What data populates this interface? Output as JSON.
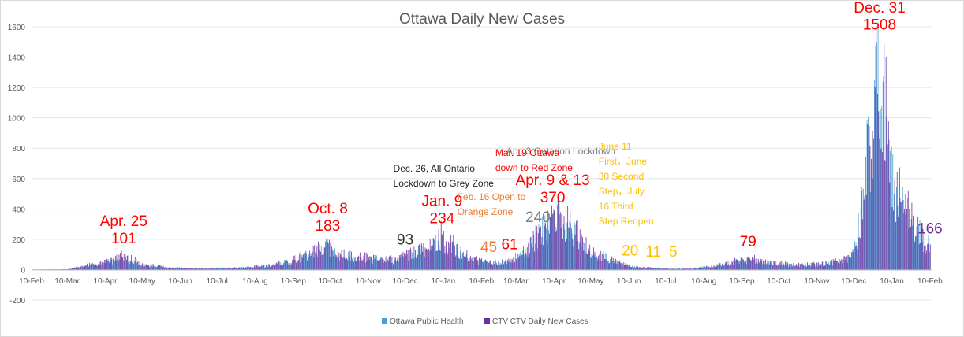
{
  "chart_data": {
    "type": "bar",
    "title": "Ottawa Daily New Cases",
    "xlabel": "",
    "ylabel": "",
    "ylim": [
      -200,
      1600
    ],
    "yticks": [
      -200,
      0,
      200,
      400,
      600,
      800,
      1000,
      1200,
      1400,
      1600
    ],
    "grid": "horizontal",
    "legend_position": "bottom",
    "x_start": "2020-02-10",
    "x_end": "2022-02-12",
    "xticks": [
      {
        "date": "2020-02-10",
        "label": "10-Feb"
      },
      {
        "date": "2020-03-10",
        "label": "10-Mar"
      },
      {
        "date": "2020-04-10",
        "label": "10-Apr"
      },
      {
        "date": "2020-05-10",
        "label": "10-May"
      },
      {
        "date": "2020-06-10",
        "label": "10-Jun"
      },
      {
        "date": "2020-07-10",
        "label": "10-Jul"
      },
      {
        "date": "2020-08-10",
        "label": "10-Aug"
      },
      {
        "date": "2020-09-10",
        "label": "10-Sep"
      },
      {
        "date": "2020-10-10",
        "label": "10-Oct"
      },
      {
        "date": "2020-11-10",
        "label": "10-Nov"
      },
      {
        "date": "2020-12-10",
        "label": "10-Dec"
      },
      {
        "date": "2021-01-10",
        "label": "10-Jan"
      },
      {
        "date": "2021-02-10",
        "label": "10-Feb"
      },
      {
        "date": "2021-03-10",
        "label": "10-Mar"
      },
      {
        "date": "2021-04-10",
        "label": "10-Apr"
      },
      {
        "date": "2021-05-10",
        "label": "10-May"
      },
      {
        "date": "2021-06-10",
        "label": "10-Jun"
      },
      {
        "date": "2021-07-10",
        "label": "10-Jul"
      },
      {
        "date": "2021-08-10",
        "label": "10-Aug"
      },
      {
        "date": "2021-09-10",
        "label": "10-Sep"
      },
      {
        "date": "2021-10-10",
        "label": "10-Oct"
      },
      {
        "date": "2021-11-10",
        "label": "10-Nov"
      },
      {
        "date": "2021-12-10",
        "label": "10-Dec"
      },
      {
        "date": "2022-01-10",
        "label": "10-Jan"
      },
      {
        "date": "2022-02-10",
        "label": "10-Feb"
      }
    ],
    "series": [
      {
        "name": "Ottawa Public Health",
        "color": "#4a9fd3",
        "points": [
          [
            "2020-02-10",
            0
          ],
          [
            "2020-03-10",
            2
          ],
          [
            "2020-03-25",
            25
          ],
          [
            "2020-04-10",
            45
          ],
          [
            "2020-04-25",
            75
          ],
          [
            "2020-05-10",
            30
          ],
          [
            "2020-06-01",
            12
          ],
          [
            "2020-07-01",
            8
          ],
          [
            "2020-08-01",
            12
          ],
          [
            "2020-08-25",
            30
          ],
          [
            "2020-09-10",
            60
          ],
          [
            "2020-09-25",
            95
          ],
          [
            "2020-10-08",
            150
          ],
          [
            "2020-10-20",
            90
          ],
          [
            "2020-11-10",
            70
          ],
          [
            "2020-12-01",
            60
          ],
          [
            "2020-12-10",
            85
          ],
          [
            "2020-12-25",
            130
          ],
          [
            "2021-01-09",
            180
          ],
          [
            "2021-01-25",
            100
          ],
          [
            "2021-02-10",
            50
          ],
          [
            "2021-02-20",
            45
          ],
          [
            "2021-03-05",
            60
          ],
          [
            "2021-03-19",
            120
          ],
          [
            "2021-03-28",
            220
          ],
          [
            "2021-04-09",
            330
          ],
          [
            "2021-04-15",
            340
          ],
          [
            "2021-04-25",
            250
          ],
          [
            "2021-05-10",
            120
          ],
          [
            "2021-05-25",
            70
          ],
          [
            "2021-06-10",
            25
          ],
          [
            "2021-06-30",
            10
          ],
          [
            "2021-07-16",
            6
          ],
          [
            "2021-08-01",
            8
          ],
          [
            "2021-08-20",
            25
          ],
          [
            "2021-09-05",
            55
          ],
          [
            "2021-09-15",
            65
          ],
          [
            "2021-10-01",
            45
          ],
          [
            "2021-10-20",
            30
          ],
          [
            "2021-11-10",
            35
          ],
          [
            "2021-11-25",
            50
          ],
          [
            "2021-12-05",
            70
          ],
          [
            "2021-12-12",
            150
          ],
          [
            "2021-12-17",
            450
          ],
          [
            "2021-12-22",
            820
          ],
          [
            "2021-12-27",
            1000
          ],
          [
            "2021-12-31",
            1450
          ],
          [
            "2022-01-03",
            1250
          ],
          [
            "2022-01-07",
            700
          ],
          [
            "2022-01-12",
            520
          ],
          [
            "2022-01-18",
            420
          ],
          [
            "2022-01-25",
            330
          ],
          [
            "2022-02-01",
            250
          ],
          [
            "2022-02-06",
            180
          ],
          [
            "2022-02-10",
            166
          ]
        ]
      },
      {
        "name": "CTV CTV Daily New Cases",
        "color": "#6a2fa0",
        "points": [
          [
            "2020-02-10",
            0
          ],
          [
            "2020-03-10",
            2
          ],
          [
            "2020-03-25",
            28
          ],
          [
            "2020-04-10",
            50
          ],
          [
            "2020-04-25",
            101
          ],
          [
            "2020-05-10",
            35
          ],
          [
            "2020-06-01",
            14
          ],
          [
            "2020-07-01",
            9
          ],
          [
            "2020-08-01",
            14
          ],
          [
            "2020-08-25",
            32
          ],
          [
            "2020-09-10",
            65
          ],
          [
            "2020-09-25",
            110
          ],
          [
            "2020-10-08",
            183
          ],
          [
            "2020-10-20",
            100
          ],
          [
            "2020-11-10",
            80
          ],
          [
            "2020-12-01",
            65
          ],
          [
            "2020-12-10",
            93
          ],
          [
            "2020-12-25",
            140
          ],
          [
            "2021-01-09",
            234
          ],
          [
            "2021-01-25",
            110
          ],
          [
            "2021-02-10",
            55
          ],
          [
            "2021-02-16",
            45
          ],
          [
            "2021-03-05",
            61
          ],
          [
            "2021-03-19",
            130
          ],
          [
            "2021-03-28",
            240
          ],
          [
            "2021-04-09",
            370
          ],
          [
            "2021-04-13",
            370
          ],
          [
            "2021-04-25",
            270
          ],
          [
            "2021-05-10",
            130
          ],
          [
            "2021-05-25",
            75
          ],
          [
            "2021-06-11",
            20
          ],
          [
            "2021-06-30",
            11
          ],
          [
            "2021-07-16",
            5
          ],
          [
            "2021-08-01",
            9
          ],
          [
            "2021-08-20",
            28
          ],
          [
            "2021-09-05",
            60
          ],
          [
            "2021-09-15",
            79
          ],
          [
            "2021-10-01",
            50
          ],
          [
            "2021-10-20",
            33
          ],
          [
            "2021-11-10",
            38
          ],
          [
            "2021-11-25",
            55
          ],
          [
            "2021-12-05",
            80
          ],
          [
            "2021-12-12",
            170
          ],
          [
            "2021-12-17",
            500
          ],
          [
            "2021-12-22",
            900
          ],
          [
            "2021-12-27",
            1100
          ],
          [
            "2021-12-31",
            1508
          ],
          [
            "2022-01-03",
            1300
          ],
          [
            "2022-01-07",
            760
          ],
          [
            "2022-01-12",
            560
          ],
          [
            "2022-01-18",
            450
          ],
          [
            "2022-01-25",
            350
          ],
          [
            "2022-02-01",
            270
          ],
          [
            "2022-02-06",
            190
          ],
          [
            "2022-02-10",
            166
          ]
        ]
      }
    ],
    "annotations": [
      {
        "date": "2020-04-25",
        "value": 101,
        "lines": [
          "Apr. 25",
          "101"
        ],
        "color": "#ff0000",
        "size": "large"
      },
      {
        "date": "2020-10-08",
        "value": 183,
        "lines": [
          "Oct. 8",
          "183"
        ],
        "color": "#ff0000",
        "size": "large"
      },
      {
        "date": "2020-12-10",
        "value": 93,
        "lines": [
          "93"
        ],
        "color": "#333333",
        "size": "large"
      },
      {
        "date": "2021-01-09",
        "value": 234,
        "lines": [
          "Jan. 9",
          "234"
        ],
        "color": "#ff0000",
        "size": "large"
      },
      {
        "date": "2021-02-16",
        "value": 45,
        "lines": [
          "45"
        ],
        "color": "#ed7d31",
        "size": "large"
      },
      {
        "date": "2021-03-05",
        "value": 61,
        "lines": [
          "61"
        ],
        "color": "#ff0000",
        "size": "large"
      },
      {
        "date": "2021-03-28",
        "value": 240,
        "lines": [
          "240"
        ],
        "color": "#808080",
        "size": "large"
      },
      {
        "date": "2021-04-09",
        "value": 370,
        "lines": [
          "Apr. 9 & 13",
          "370"
        ],
        "color": "#ff0000",
        "size": "large"
      },
      {
        "date": "2021-06-11",
        "value": 20,
        "lines": [
          "20"
        ],
        "color": "#ffc000",
        "size": "large"
      },
      {
        "date": "2021-06-30",
        "value": 11,
        "lines": [
          "11"
        ],
        "color": "#ffc000",
        "size": "large"
      },
      {
        "date": "2021-07-16",
        "value": 5,
        "lines": [
          "5"
        ],
        "color": "#ffc000",
        "size": "large"
      },
      {
        "date": "2021-09-15",
        "value": 79,
        "lines": [
          "79"
        ],
        "color": "#ff0000",
        "size": "large"
      },
      {
        "date": "2021-12-31",
        "value": 1508,
        "lines": [
          "Dec. 31",
          "1508"
        ],
        "color": "#ff0000",
        "size": "large"
      },
      {
        "date": "2022-02-10",
        "value": 166,
        "lines": [
          "166"
        ],
        "color": "#7030a0",
        "size": "large"
      }
    ],
    "notes": [
      {
        "date": "2021-03-28",
        "lines": [
          "Apr. 3 Ontarion Lockdown"
        ],
        "color": "#808080"
      },
      {
        "date": "2020-12-26",
        "lines": [
          "Dec. 26, All Ontario",
          "Lockdown to Grey Zone"
        ],
        "color": "#222222"
      },
      {
        "date": "2021-03-19",
        "lines": [
          "Mar. 19 Ottawa",
          "down to Red Zone"
        ],
        "color": "#ff0000"
      },
      {
        "date": "2021-02-16",
        "lines": [
          "Feb. 16 Open to",
          "Orange Zone"
        ],
        "color": "#ed7d31"
      },
      {
        "date": "2021-06-11",
        "lines": [
          "June 11",
          "First，June",
          "30 Second",
          "Step，July",
          "16 Third",
          "Step Reopen"
        ],
        "color": "#ffc000"
      }
    ]
  }
}
